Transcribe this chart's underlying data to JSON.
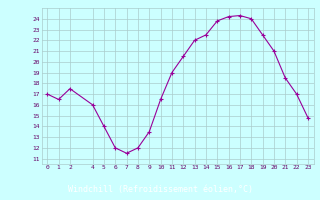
{
  "x": [
    0,
    1,
    2,
    4,
    5,
    6,
    7,
    8,
    9,
    10,
    11,
    12,
    13,
    14,
    15,
    16,
    17,
    18,
    19,
    20,
    21,
    22,
    23
  ],
  "y": [
    17.0,
    16.5,
    17.5,
    16.0,
    14.0,
    12.0,
    11.5,
    12.0,
    13.5,
    16.5,
    19.0,
    20.5,
    22.0,
    22.5,
    23.8,
    24.2,
    24.3,
    24.0,
    22.5,
    21.0,
    18.5,
    17.0,
    14.8
  ],
  "xlim": [
    -0.5,
    23.5
  ],
  "ylim": [
    10.5,
    25.0
  ],
  "yticks": [
    11,
    12,
    13,
    14,
    15,
    16,
    17,
    18,
    19,
    20,
    21,
    22,
    23,
    24
  ],
  "xticks": [
    0,
    1,
    2,
    4,
    5,
    6,
    7,
    8,
    9,
    10,
    11,
    12,
    13,
    14,
    15,
    16,
    17,
    18,
    19,
    20,
    21,
    22,
    23
  ],
  "xlabel": "Windchill (Refroidissement éolien,°C)",
  "line_color": "#990099",
  "marker": "+",
  "bg_color": "#ccffff",
  "grid_color": "#aacccc",
  "label_bg": "#990099",
  "label_fg": "#ffffff",
  "tick_color": "#660066"
}
